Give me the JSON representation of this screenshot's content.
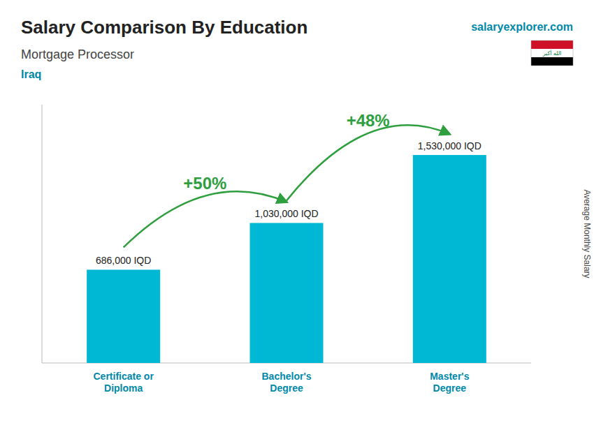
{
  "chart_data": {
    "type": "bar",
    "title": "Salary Comparison By Education",
    "subtitle": "Mortgage Processor",
    "country": "Iraq",
    "source": "salaryexplorer.com",
    "flag_text": "الله أكبر",
    "ylabel": "Average Monthly Salary",
    "categories": [
      "Certificate or\nDiploma",
      "Bachelor's\nDegree",
      "Master's\nDegree"
    ],
    "values": [
      686000,
      1030000,
      1530000
    ],
    "value_labels": [
      "686,000 IQD",
      "1,030,000 IQD",
      "1,530,000 IQD"
    ],
    "data_labels": true,
    "annotations": [
      "+50%",
      "+48%"
    ],
    "color": "#00b8d4",
    "ylim": [
      0,
      1900000
    ],
    "tick_labels": "x",
    "grid": false
  }
}
